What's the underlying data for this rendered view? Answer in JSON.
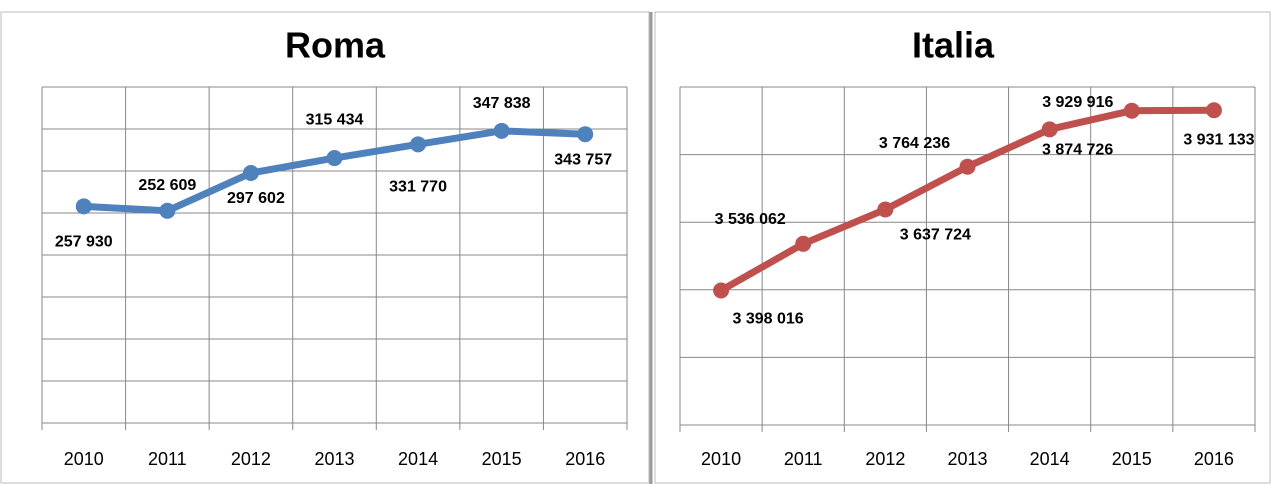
{
  "chart_data": [
    {
      "type": "line",
      "title": "Roma",
      "categories": [
        "2010",
        "2011",
        "2012",
        "2013",
        "2014",
        "2015",
        "2016"
      ],
      "values": [
        257930,
        252609,
        297602,
        315434,
        331770,
        347838,
        343757
      ],
      "value_labels": [
        "257 930",
        "252 609",
        "297 602",
        "315 434",
        "331 770",
        "347 838",
        "343 757"
      ],
      "color": "#4f81bd",
      "ylim": [
        0,
        400000
      ],
      "yticks": [
        0,
        50000,
        100000,
        150000,
        200000,
        250000,
        300000,
        350000,
        400000
      ],
      "grid": true
    },
    {
      "type": "line",
      "title": "Italia",
      "categories": [
        "2010",
        "2011",
        "2012",
        "2013",
        "2014",
        "2015",
        "2016"
      ],
      "values": [
        3398016,
        3536062,
        3637724,
        3764236,
        3874726,
        3929916,
        3931133
      ],
      "value_labels": [
        "3 398 016",
        "3 536 062",
        "3 637 724",
        "3 764 236",
        "3 874 726",
        "3 929 916",
        "3 931 133"
      ],
      "color": "#c0504d",
      "ylim": [
        3000000,
        4000000
      ],
      "yticks": [
        3000000,
        3200000,
        3400000,
        3600000,
        3800000,
        4000000
      ],
      "grid": true
    }
  ]
}
